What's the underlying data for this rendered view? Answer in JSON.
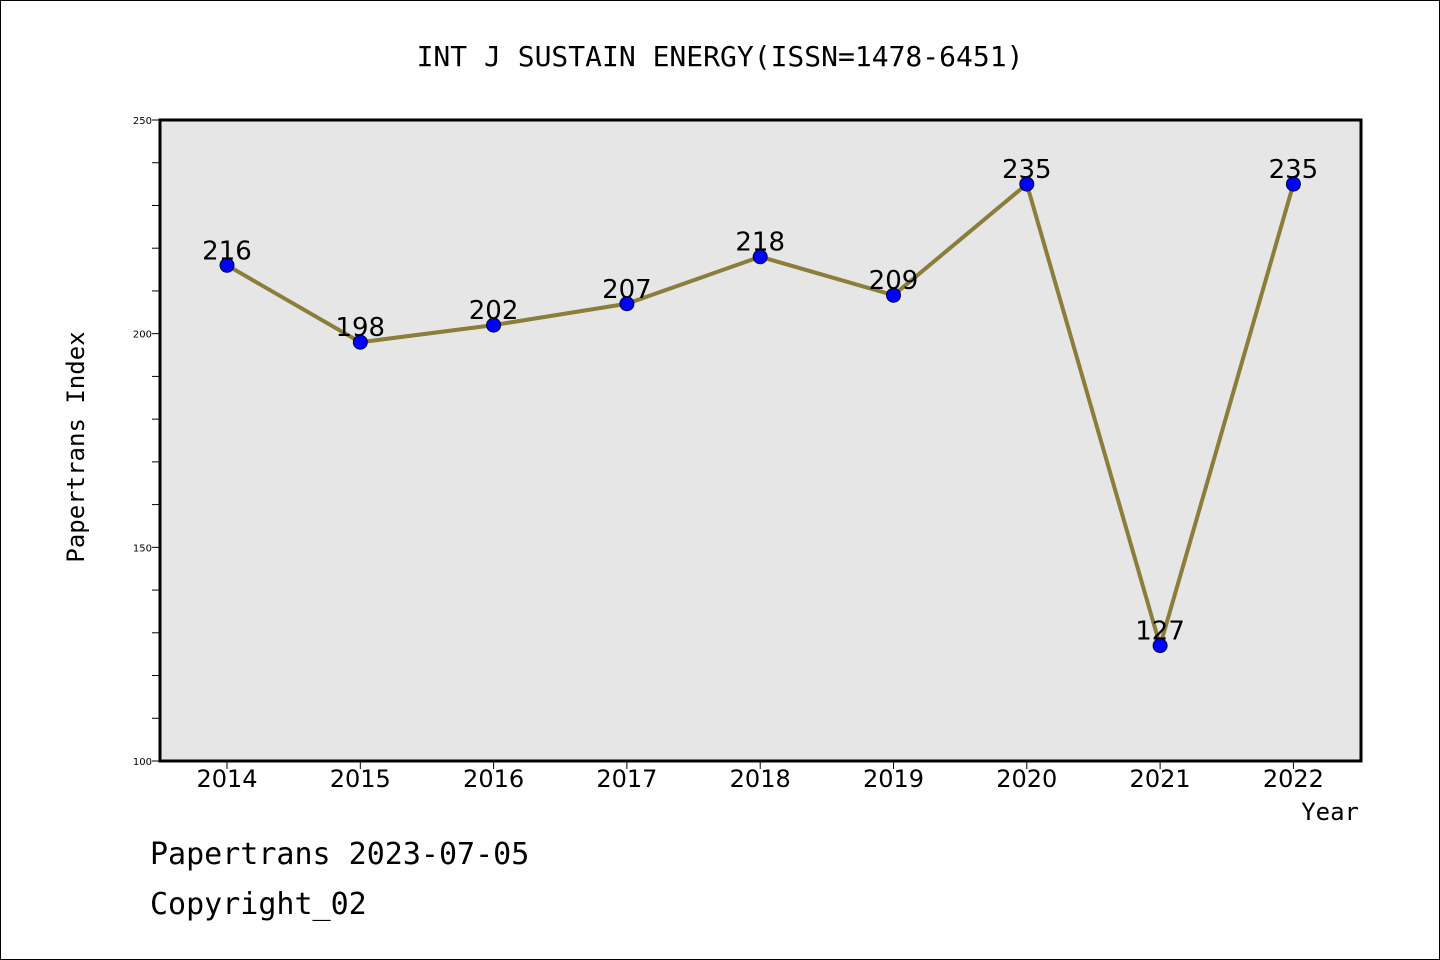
{
  "chart_data": {
    "type": "line",
    "title": "INT J SUSTAIN ENERGY(ISSN=1478-6451)",
    "xlabel": "Year",
    "ylabel": "Papertrans Index",
    "categories": [
      "2014",
      "2015",
      "2016",
      "2017",
      "2018",
      "2019",
      "2020",
      "2021",
      "2022"
    ],
    "values": [
      216,
      198,
      202,
      207,
      218,
      209,
      235,
      127,
      235
    ],
    "data_labels": [
      "216",
      "198",
      "202",
      "207",
      "218",
      "209",
      "235",
      "127",
      "235"
    ],
    "ylim": [
      100,
      250
    ],
    "yticks": [
      "100",
      "150",
      "200",
      "250"
    ],
    "grid": false,
    "legend": "none"
  },
  "footer": {
    "line1": "Papertrans 2023-07-05",
    "line2": "Copyright_02"
  },
  "colors": {
    "plot_background": "#e6e6e6",
    "line": "#8b7d3a",
    "marker": "#0000ff",
    "axis": "#000000"
  }
}
